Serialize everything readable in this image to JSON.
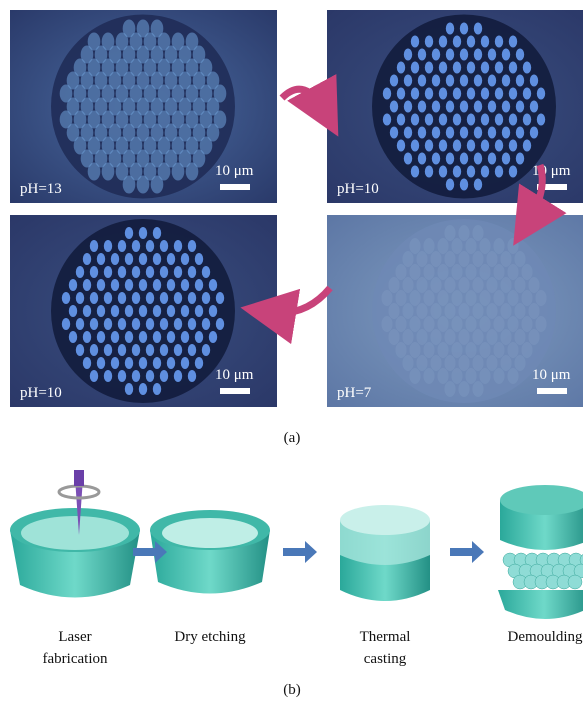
{
  "panels": [
    {
      "ph": "pH=13",
      "scale": "10 μm"
    },
    {
      "ph": "pH=10",
      "scale": "10 μm"
    },
    {
      "ph": "pH=10",
      "scale": "10 μm"
    },
    {
      "ph": "pH=7",
      "scale": "10 μm"
    }
  ],
  "caption_a": "(a)",
  "steps": [
    {
      "lines": [
        "Laser",
        "fabrication"
      ]
    },
    {
      "lines": [
        "Dry etching"
      ]
    },
    {
      "lines": [
        "Thermal",
        "casting"
      ]
    },
    {
      "lines": [
        "Demoulding"
      ]
    }
  ],
  "caption_b": "(b)"
}
